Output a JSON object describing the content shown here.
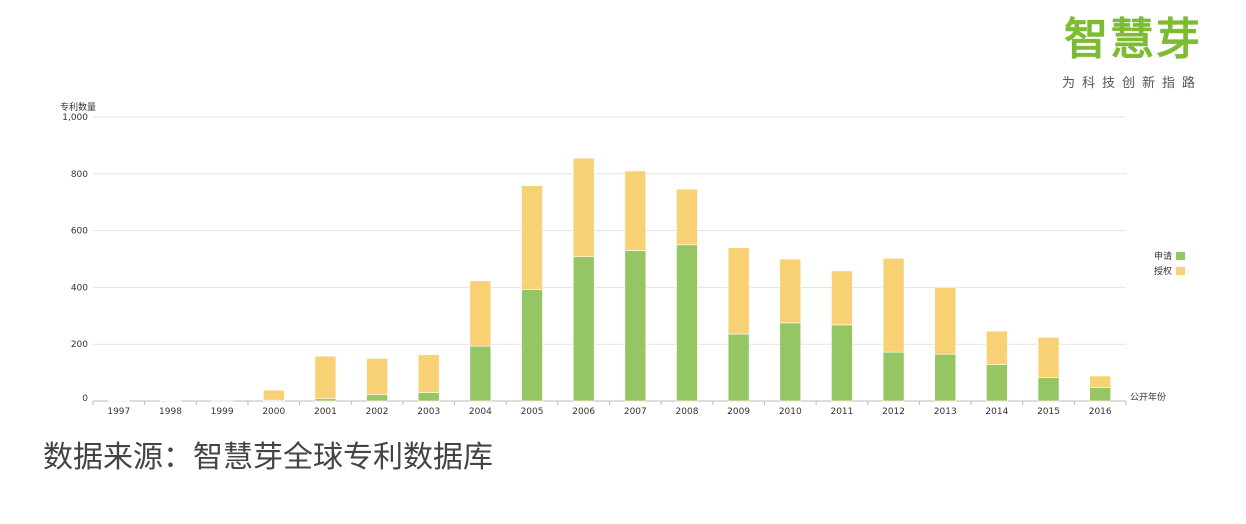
{
  "brand": {
    "title": "智慧芽",
    "tagline": "为科技创新指路",
    "color": "#7cbb32"
  },
  "source_note": "数据来源：智慧芽全球专利数据库",
  "chart_data": {
    "type": "bar",
    "stacked": true,
    "ylabel": "专利数量",
    "xlabel": "公开年份",
    "ylim": [
      0,
      1000
    ],
    "yticks": [
      0,
      200,
      400,
      600,
      800,
      1000
    ],
    "ytick_labels": [
      "0",
      "200",
      "400",
      "600",
      "800",
      "1,000"
    ],
    "grid": true,
    "legend_position": "right",
    "categories": [
      "1997",
      "1998",
      "1999",
      "2000",
      "2001",
      "2002",
      "2003",
      "2004",
      "2005",
      "2006",
      "2007",
      "2008",
      "2009",
      "2010",
      "2011",
      "2012",
      "2013",
      "2014",
      "2015",
      "2016"
    ],
    "series": [
      {
        "name": "申请",
        "color": "#96c564",
        "values": [
          1,
          1,
          3,
          3,
          8,
          22,
          30,
          193,
          393,
          508,
          530,
          550,
          236,
          275,
          268,
          172,
          165,
          128,
          82,
          48
        ]
      },
      {
        "name": "授权",
        "color": "#f7d173",
        "values": [
          1,
          1,
          1,
          35,
          150,
          128,
          133,
          230,
          365,
          347,
          280,
          196,
          304,
          225,
          190,
          330,
          235,
          118,
          142,
          40
        ]
      }
    ]
  }
}
